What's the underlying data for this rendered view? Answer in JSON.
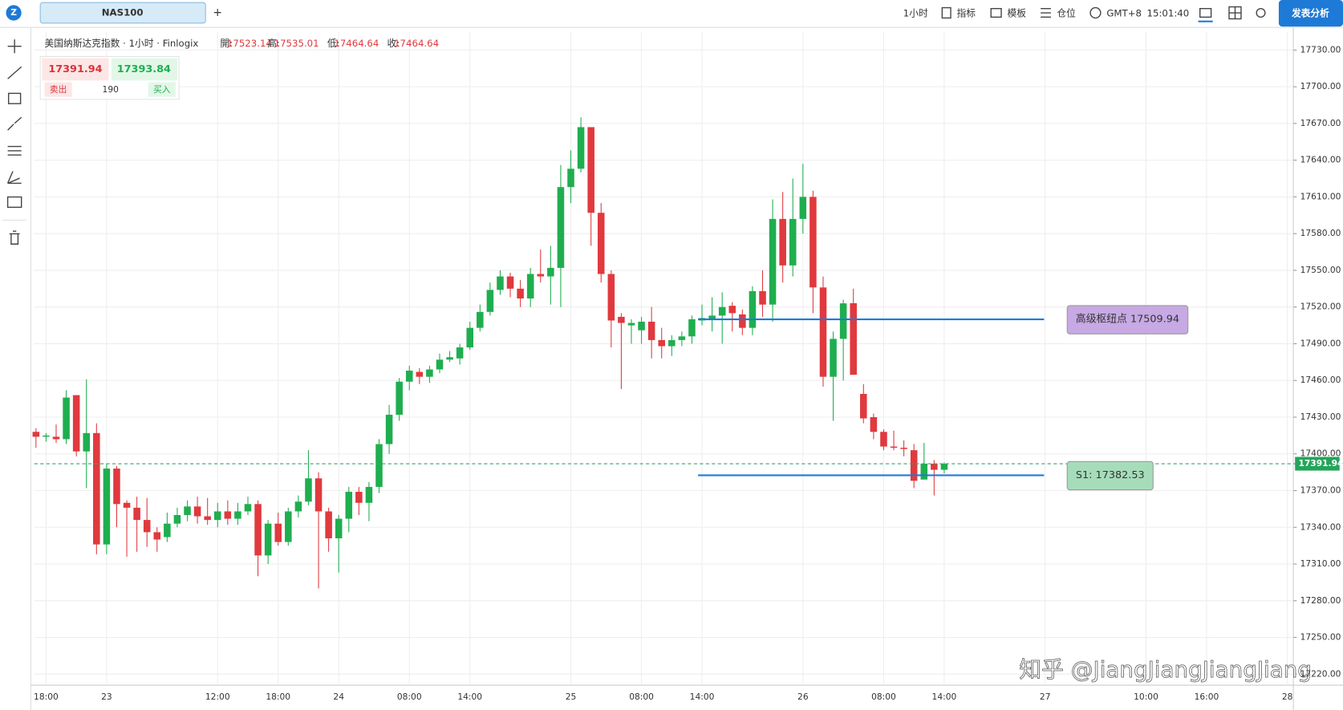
{
  "ui": {
    "tab": "NAS100",
    "add_tab": "+",
    "toolbar": {
      "interval": "1小时",
      "indicators": "指标",
      "templates": "模板",
      "positions": "仓位",
      "timezone": "GMT+8",
      "time": "15:01:40",
      "publish": "发表分析"
    },
    "trade": {
      "sell_price": 17391.94,
      "buy_price": 17393.84,
      "sell": "卖出",
      "quantity": 190,
      "buy": "买入"
    },
    "watermark": "知乎 @JiangJiangJiangJiang"
  },
  "chart_data": {
    "type": "candlestick",
    "title": "美国纳斯达克指数 · 1小时 · Finlogix",
    "ohlc_legend": [
      {
        "label": "開:",
        "value": 17523.14
      },
      {
        "label": "高:",
        "value": 17535.01
      },
      {
        "label": "低:",
        "value": 17464.64
      },
      {
        "label": "收:",
        "value": 17464.64
      }
    ],
    "up_color": "#1fae4f",
    "down_color": "#e0393e",
    "grid": true,
    "categories": [
      null,
      "18:00",
      null,
      null,
      null,
      null,
      null,
      "23",
      null,
      null,
      null,
      null,
      null,
      null,
      null,
      null,
      null,
      null,
      "12:00",
      null,
      null,
      null,
      null,
      null,
      "18:00",
      null,
      null,
      null,
      null,
      null,
      "24",
      null,
      null,
      null,
      null,
      null,
      null,
      "08:00",
      null,
      null,
      null,
      null,
      null,
      "14:00",
      null,
      null,
      null,
      null,
      null,
      null,
      null,
      null,
      null,
      "25",
      null,
      null,
      null,
      null,
      null,
      null,
      "08:00",
      null,
      null,
      null,
      null,
      null,
      "14:00",
      null,
      null,
      null,
      null,
      null,
      null,
      null,
      null,
      null,
      "26",
      null,
      null,
      null,
      null,
      null,
      null,
      null,
      "08:00",
      null,
      null,
      null,
      null,
      null,
      "14:00",
      null,
      null,
      null,
      null,
      null,
      null,
      null,
      null,
      null,
      "27",
      null,
      null,
      null,
      null,
      null,
      null,
      null,
      null,
      null,
      "10:00",
      null,
      null,
      null,
      null,
      null,
      "16:00",
      null,
      null,
      null,
      null,
      null,
      null,
      null,
      "28"
    ],
    "open": [
      17418,
      17414,
      17414,
      17412,
      17448,
      17402,
      17417,
      17326,
      17388,
      17360,
      17356,
      17346,
      17336,
      17332,
      17343,
      17350,
      17357,
      17349,
      17346,
      17353,
      17347,
      17353,
      17359,
      17317,
      17343,
      17328,
      17353,
      17361,
      17380,
      17353,
      17331,
      17347,
      17369,
      17360,
      17373,
      17408,
      17432,
      17459,
      17467,
      17463,
      17469,
      17477,
      17478,
      17487,
      17503,
      17516,
      17534,
      17545,
      17535,
      17527,
      17547,
      17545,
      17552,
      17618,
      17633,
      17667,
      17597,
      17547,
      17512,
      17505,
      17501,
      17508,
      17493,
      17488,
      17493,
      17496,
      17509,
      17510,
      17513,
      17521,
      17514,
      17503,
      17533,
      17522,
      17592,
      17554,
      17592,
      17610,
      17536,
      17463,
      17494,
      17523.14,
      17449,
      17430,
      17418,
      17406,
      17405,
      17403,
      17379,
      17392,
      17387,
      null,
      null,
      null,
      null,
      null,
      null,
      null,
      null,
      null,
      null,
      null,
      null,
      null,
      null,
      null,
      null,
      null,
      null,
      null,
      null,
      null,
      null,
      null,
      null,
      null,
      null,
      null,
      null,
      null,
      null,
      null,
      null,
      null,
      null
    ],
    "high": [
      17421,
      17417,
      17424,
      17452,
      17448,
      17461,
      17425,
      17392,
      17390,
      17362,
      17365,
      17364,
      17340,
      17352,
      17356,
      17362,
      17365,
      17364,
      17360,
      17362,
      17360,
      17365,
      17362,
      17346,
      17352,
      17356,
      17366,
      17403,
      17385,
      17356,
      17350,
      17373,
      17373,
      17377,
      17412,
      17440,
      17462,
      17472,
      17470,
      17472,
      17482,
      17484,
      17490,
      17508,
      17522,
      17540,
      17550,
      17548,
      17542,
      17552,
      17567,
      17570,
      17636,
      17648,
      17675,
      17667,
      17605,
      17550,
      17515,
      17510,
      17512,
      17520,
      17503,
      17497,
      17500,
      17513,
      17522,
      17528,
      17532,
      17524,
      17518,
      17537,
      17550,
      17608,
      17614,
      17625,
      17637,
      17615,
      17545,
      17500,
      17526,
      17535.01,
      17457,
      17433,
      17420,
      17419,
      17411,
      17408,
      17409,
      17395,
      17393,
      null,
      null,
      null,
      null,
      null,
      null,
      null,
      null,
      null,
      null,
      null,
      null,
      null,
      null,
      null,
      null,
      null,
      null,
      null,
      null,
      null,
      null,
      null,
      null,
      null,
      null,
      null,
      null,
      null,
      null,
      null,
      null,
      null,
      null
    ],
    "low": [
      17405,
      17410,
      17409,
      17408,
      17398,
      17372,
      17318,
      17318,
      17340,
      17316,
      17320,
      17324,
      17320,
      17328,
      17340,
      17345,
      17343,
      17342,
      17340,
      17342,
      17342,
      17350,
      17300,
      17310,
      17325,
      17325,
      17348,
      17358,
      17290,
      17320,
      17303,
      17336,
      17350,
      17345,
      17368,
      17400,
      17427,
      17452,
      17457,
      17458,
      17466,
      17475,
      17473,
      17485,
      17500,
      17513,
      17530,
      17528,
      17520,
      17520,
      17540,
      17522,
      17520,
      17605,
      17630,
      17570,
      17540,
      17487,
      17453,
      17490,
      17490,
      17478,
      17478,
      17480,
      17488,
      17490,
      17505,
      17500,
      17490,
      17500,
      17497,
      17497,
      17512,
      17508,
      17540,
      17545,
      17580,
      17515,
      17455,
      17427,
      17460,
      17464.64,
      17425,
      17412,
      17403,
      17403,
      17398,
      17372,
      17380,
      17366,
      17384,
      null,
      null,
      null,
      null,
      null,
      null,
      null,
      null,
      null,
      null,
      null,
      null,
      null,
      null,
      null,
      null,
      null,
      null,
      null,
      null,
      null,
      null,
      null,
      null,
      null,
      null,
      null,
      null,
      null,
      null,
      null,
      null,
      null,
      null
    ],
    "close": [
      17414,
      17415,
      17412,
      17446,
      17402,
      17417,
      17326,
      17388,
      17359,
      17356,
      17346,
      17336,
      17330,
      17343,
      17350,
      17357,
      17349,
      17346,
      17353,
      17347,
      17353,
      17359,
      17317,
      17343,
      17328,
      17353,
      17361,
      17380,
      17353,
      17331,
      17347,
      17369,
      17360,
      17373,
      17408,
      17432,
      17459,
      17468,
      17463,
      17469,
      17477,
      17479,
      17487,
      17503,
      17516,
      17534,
      17545,
      17535,
      17527,
      17547,
      17545,
      17552,
      17618,
      17633,
      17667,
      17597,
      17547,
      17509,
      17507,
      17507,
      17508,
      17493,
      17488,
      17493,
      17496,
      17510,
      17511,
      17513,
      17520,
      17515,
      17503,
      17533,
      17522,
      17592,
      17554,
      17592,
      17610,
      17536,
      17463,
      17494,
      17523,
      17464.64,
      17429,
      17418,
      17406,
      17405,
      17404,
      17378,
      17392,
      17387,
      17391.94,
      null,
      null,
      null,
      null,
      null,
      null,
      null,
      null,
      null,
      null,
      null,
      null,
      null,
      null,
      null,
      null,
      null,
      null,
      null,
      null,
      null,
      null,
      null,
      null,
      null,
      null,
      null,
      null,
      null,
      null,
      null,
      null,
      null,
      null
    ],
    "levels": [
      {
        "label": "高级枢纽点 17509.94",
        "value": 17509.94,
        "color": "#c7a9e4"
      },
      {
        "label": "S1: 17382.53",
        "value": 17382.53,
        "color": "#a6dcba"
      }
    ],
    "level_line_color": "#1e7ad6",
    "ylim": [
      17211,
      17745
    ],
    "yticks": [
      {
        "value": 17220,
        "label": "17220.00"
      },
      {
        "value": 17250,
        "label": "17250.00"
      },
      {
        "value": 17280,
        "label": "17280.00"
      },
      {
        "value": 17310,
        "label": "17310.00"
      },
      {
        "value": 17340,
        "label": "17340.00"
      },
      {
        "value": 17370,
        "label": "17370.00"
      },
      {
        "value": 17400,
        "label": "17400.00"
      },
      {
        "value": 17430,
        "label": "17430.00"
      },
      {
        "value": 17460,
        "label": "17460.00"
      },
      {
        "value": 17490,
        "label": "17490.00"
      },
      {
        "value": 17520,
        "label": "17520.00"
      },
      {
        "value": 17550,
        "label": "17550.00"
      },
      {
        "value": 17580,
        "label": "17580.00"
      },
      {
        "value": 17610,
        "label": "17610.00"
      },
      {
        "value": 17640,
        "label": "17640.00"
      },
      {
        "value": 17670,
        "label": "17670.00"
      },
      {
        "value": 17700,
        "label": "17700.00"
      },
      {
        "value": 17730,
        "label": "17730.00"
      }
    ]
  }
}
